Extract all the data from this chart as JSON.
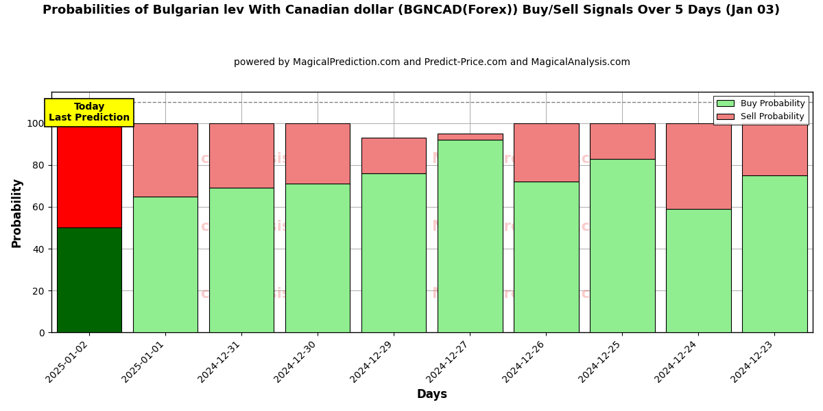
{
  "title": "Probabilities of Bulgarian lev With Canadian dollar (BGNCAD(Forex)) Buy/Sell Signals Over 5 Days (Jan 03)",
  "subtitle": "powered by MagicalPrediction.com and Predict-Price.com and MagicalAnalysis.com",
  "xlabel": "Days",
  "ylabel": "Probability",
  "categories": [
    "2025-01-02",
    "2025-01-01",
    "2024-12-31",
    "2024-12-30",
    "2024-12-29",
    "2024-12-27",
    "2024-12-26",
    "2024-12-25",
    "2024-12-24",
    "2024-12-23"
  ],
  "buy_values": [
    50,
    65,
    69,
    71,
    76,
    92,
    72,
    83,
    59,
    75
  ],
  "sell_values": [
    50,
    35,
    31,
    29,
    17,
    3,
    28,
    17,
    41,
    25
  ],
  "buy_colors": [
    "#006400",
    "#90EE90",
    "#90EE90",
    "#90EE90",
    "#90EE90",
    "#90EE90",
    "#90EE90",
    "#90EE90",
    "#90EE90",
    "#90EE90"
  ],
  "sell_colors": [
    "#FF0000",
    "#F08080",
    "#F08080",
    "#F08080",
    "#F08080",
    "#F08080",
    "#F08080",
    "#F08080",
    "#F08080",
    "#F08080"
  ],
  "legend_buy_color": "#90EE90",
  "legend_sell_color": "#F08080",
  "today_box_color": "#FFFF00",
  "dashed_line_y": 110,
  "ylim": [
    0,
    115
  ],
  "yticks": [
    0,
    20,
    40,
    60,
    80,
    100
  ],
  "grid_color": "#aaaaaa",
  "background_color": "#ffffff",
  "bar_width": 0.85
}
